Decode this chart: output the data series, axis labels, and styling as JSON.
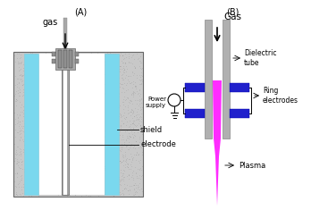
{
  "fig_width": 3.48,
  "fig_height": 2.35,
  "dpi": 100,
  "bg_color": "#ffffff",
  "label_A": "(A)",
  "label_B": "(B)",
  "gas_label": "gas",
  "gas_label_B": "Gas",
  "shield_label": "shield",
  "electrode_label": "electrode",
  "dielectric_label": "Dielectric\ntube",
  "ring_label": "Ring\nelectrodes",
  "power_label": "Power\nsupply",
  "plasma_label": "Plasma",
  "hatch_color": "#c8c8c8",
  "cyan_color": "#7ad8ee",
  "gray_tube_color": "#a8a8a8",
  "light_gray": "#c8c8c8",
  "dark_gray": "#909090",
  "blue_electrode": "#2020cc",
  "magenta_plasma": "#ff20ff",
  "white": "#ffffff"
}
